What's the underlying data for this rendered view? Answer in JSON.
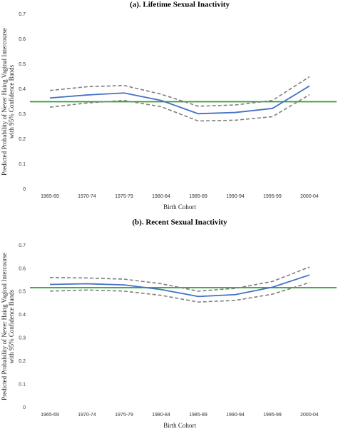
{
  "chart_data": [
    {
      "type": "line",
      "title": "(a). Lifetime Sexual Inactivity",
      "ylabel": [
        "Predicted Probability of Never Haing Vaginal Intercourse",
        "with 95% Confidence Bands"
      ],
      "xlabel": "Birth Cohort",
      "categories": [
        "1965-69",
        "1970-74",
        "1975-79",
        "1980-84",
        "1985-89",
        "1990-94",
        "1995-99",
        "2000-04"
      ],
      "series": [
        {
          "color": "#7f7f7f",
          "dashed": true,
          "values": [
            0.395,
            0.41,
            0.415,
            0.38,
            0.332,
            0.337,
            0.355,
            0.45
          ]
        },
        {
          "color": "#7f7f7f",
          "dashed": true,
          "values": [
            0.328,
            0.345,
            0.355,
            0.33,
            0.273,
            0.276,
            0.29,
            0.378
          ]
        },
        {
          "color": "#4472c4",
          "dashed": false,
          "values": [
            0.365,
            0.377,
            0.385,
            0.355,
            0.302,
            0.307,
            0.323,
            0.413
          ]
        }
      ],
      "reference_line": {
        "value": 0.35,
        "color": "#2ca02c"
      },
      "ylim": [
        0,
        0.7
      ],
      "yticks": [
        0,
        0.1,
        0.2,
        0.3,
        0.4,
        0.5,
        0.6,
        0.7
      ]
    },
    {
      "type": "line",
      "title": "(b). Recent Sexual Inactivity",
      "ylabel": [
        "Predicted Probability of Never Haing Vaginal Intercourse",
        "with 95% Confidence Bands"
      ],
      "xlabel": "Birth Cohort",
      "categories": [
        "1965-69",
        "1970-74",
        "1975-79",
        "1980-84",
        "1985-89",
        "1990-94",
        "1995-99",
        "2000-04"
      ],
      "series": [
        {
          "color": "#7f7f7f",
          "dashed": true,
          "values": [
            0.562,
            0.56,
            0.555,
            0.535,
            0.503,
            0.515,
            0.545,
            0.607
          ]
        },
        {
          "color": "#7f7f7f",
          "dashed": true,
          "values": [
            0.503,
            0.508,
            0.503,
            0.485,
            0.456,
            0.463,
            0.49,
            0.54
          ]
        },
        {
          "color": "#4472c4",
          "dashed": false,
          "values": [
            0.532,
            0.535,
            0.53,
            0.51,
            0.48,
            0.488,
            0.52,
            0.573
          ]
        }
      ],
      "reference_line": {
        "value": 0.518,
        "color": "#2ca02c"
      },
      "ylim": [
        0,
        0.7
      ],
      "yticks": [
        0,
        0.1,
        0.2,
        0.3,
        0.4,
        0.5,
        0.6,
        0.7
      ]
    }
  ]
}
